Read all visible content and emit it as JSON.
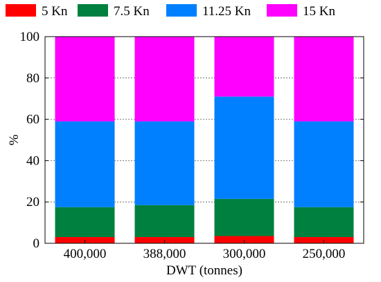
{
  "chart_data": {
    "type": "bar",
    "stacked": true,
    "xlabel": "DWT (tonnes)",
    "ylabel": "%",
    "ylim": [
      0,
      100
    ],
    "yticks": [
      0,
      20,
      40,
      60,
      80,
      100
    ],
    "grid": true,
    "legend_position": "top",
    "categories": [
      "400,000",
      "388,000",
      "300,000",
      "250,000"
    ],
    "series": [
      {
        "name": "5 Kn",
        "color": "#ff0000",
        "values": [
          3,
          3,
          3.5,
          3
        ]
      },
      {
        "name": "7.5 Kn",
        "color": "#00803f",
        "values": [
          14.5,
          15.5,
          18,
          14.5
        ]
      },
      {
        "name": "11.25 Kn",
        "color": "#0080ff",
        "values": [
          41.5,
          40.5,
          49.5,
          41.5
        ]
      },
      {
        "name": "15 Kn",
        "color": "#ff00ff",
        "values": [
          41,
          41,
          29,
          41
        ]
      }
    ]
  }
}
